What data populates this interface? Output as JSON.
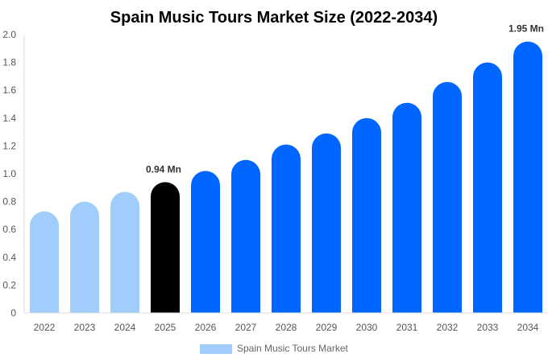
{
  "chart_data": {
    "type": "bar",
    "title": "Spain Music Tours Market Size (2022-2034)",
    "xlabel": "",
    "ylabel": "",
    "categories": [
      "2022",
      "2023",
      "2024",
      "2025",
      "2026",
      "2027",
      "2028",
      "2029",
      "2030",
      "2031",
      "2032",
      "2033",
      "2034"
    ],
    "series": [
      {
        "name": "Spain Music Tours Market",
        "values": [
          0.73,
          0.8,
          0.87,
          0.94,
          1.02,
          1.1,
          1.21,
          1.29,
          1.4,
          1.51,
          1.66,
          1.8,
          1.95
        ]
      }
    ],
    "ylim": [
      0,
      2.0
    ],
    "yticks": [
      "0",
      "0.2",
      "0.4",
      "0.6",
      "0.8",
      "1.0",
      "1.2",
      "1.4",
      "1.6",
      "1.8",
      "2.0"
    ],
    "data_labels": [
      {
        "category": "2025",
        "text": "0.94 Mn"
      },
      {
        "category": "2034",
        "text": "1.95 Mn"
      }
    ],
    "grid": false,
    "legend": "bottom",
    "colors": {
      "historical": "#a0cdfc",
      "current": "#000000",
      "forecast": "#0066ff"
    }
  }
}
